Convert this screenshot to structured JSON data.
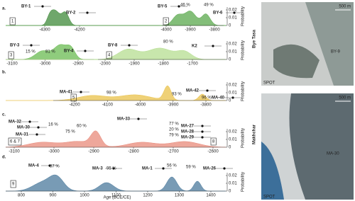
{
  "panel_letters": [
    "a.",
    "b.",
    "c.",
    "d."
  ],
  "subplots": [
    {
      "ticks": [
        -4300,
        -4200
      ],
      "boxes": [
        "1"
      ],
      "samples": [
        "BY-1",
        "BY-2"
      ],
      "percents": []
    },
    {
      "ticks": [
        -4000,
        -3900,
        -3800
      ],
      "boxes": [
        "2"
      ],
      "samples": [
        "BY-5",
        "BY-6"
      ],
      "percents": [
        "46 %",
        "49 %"
      ]
    },
    {
      "ticks": [
        -3100,
        -3000,
        -2900
      ],
      "boxes": [
        "3"
      ],
      "samples": [
        "BY-3",
        "BY-4"
      ],
      "percents": [
        "15 %",
        "81 %"
      ]
    },
    {
      "ticks": [
        -2000,
        -1900,
        -1800,
        -1700
      ],
      "boxes": [
        "4"
      ],
      "samples": [
        "BY-8",
        "K2"
      ],
      "percents": [
        "80 %"
      ]
    },
    {
      "ticks": [
        -4200,
        -4100,
        -4000,
        -3900,
        -3800
      ],
      "boxes": [
        "5"
      ],
      "samples": [
        "MA-41",
        "MA-42",
        "MA-40"
      ],
      "percents": [
        "98 %",
        "93 %",
        "96 %"
      ]
    },
    {
      "ticks": [
        -3100,
        -3000,
        -2900,
        -2800,
        -2700,
        -2600
      ],
      "boxes": [
        "6 & 7",
        "8"
      ],
      "samples": [
        "MA-32",
        "MA-30",
        "MA-31",
        "MA-33",
        "MA-27",
        "MA-28",
        "MA-29"
      ],
      "percents": [
        "16 %",
        "60 %",
        "75 %",
        "77 %",
        "20 %",
        "79 %"
      ]
    },
    {
      "ticks": [
        800,
        900,
        1000,
        1100,
        1200,
        1300,
        1400
      ],
      "boxes": [
        "9"
      ],
      "samples": [
        "MA-4",
        "MA-3",
        "MA-1",
        "MA-26"
      ],
      "percents": [
        "87 %",
        "95 %",
        "56 %",
        "59 %"
      ]
    }
  ],
  "probability_axis": {
    "label": "Probability",
    "ticks": [
      0.02,
      0.01,
      0
    ]
  },
  "x_label": "Age (BCE/CE)",
  "site_labels": [
    "Bye Tasa",
    "Makhchar"
  ],
  "maps": [
    {
      "scale": "500 m",
      "source": "SPOT",
      "sample": "BY-9"
    },
    {
      "scale": "500 m",
      "source": "SPOT",
      "sample": "MA-30"
    }
  ]
}
